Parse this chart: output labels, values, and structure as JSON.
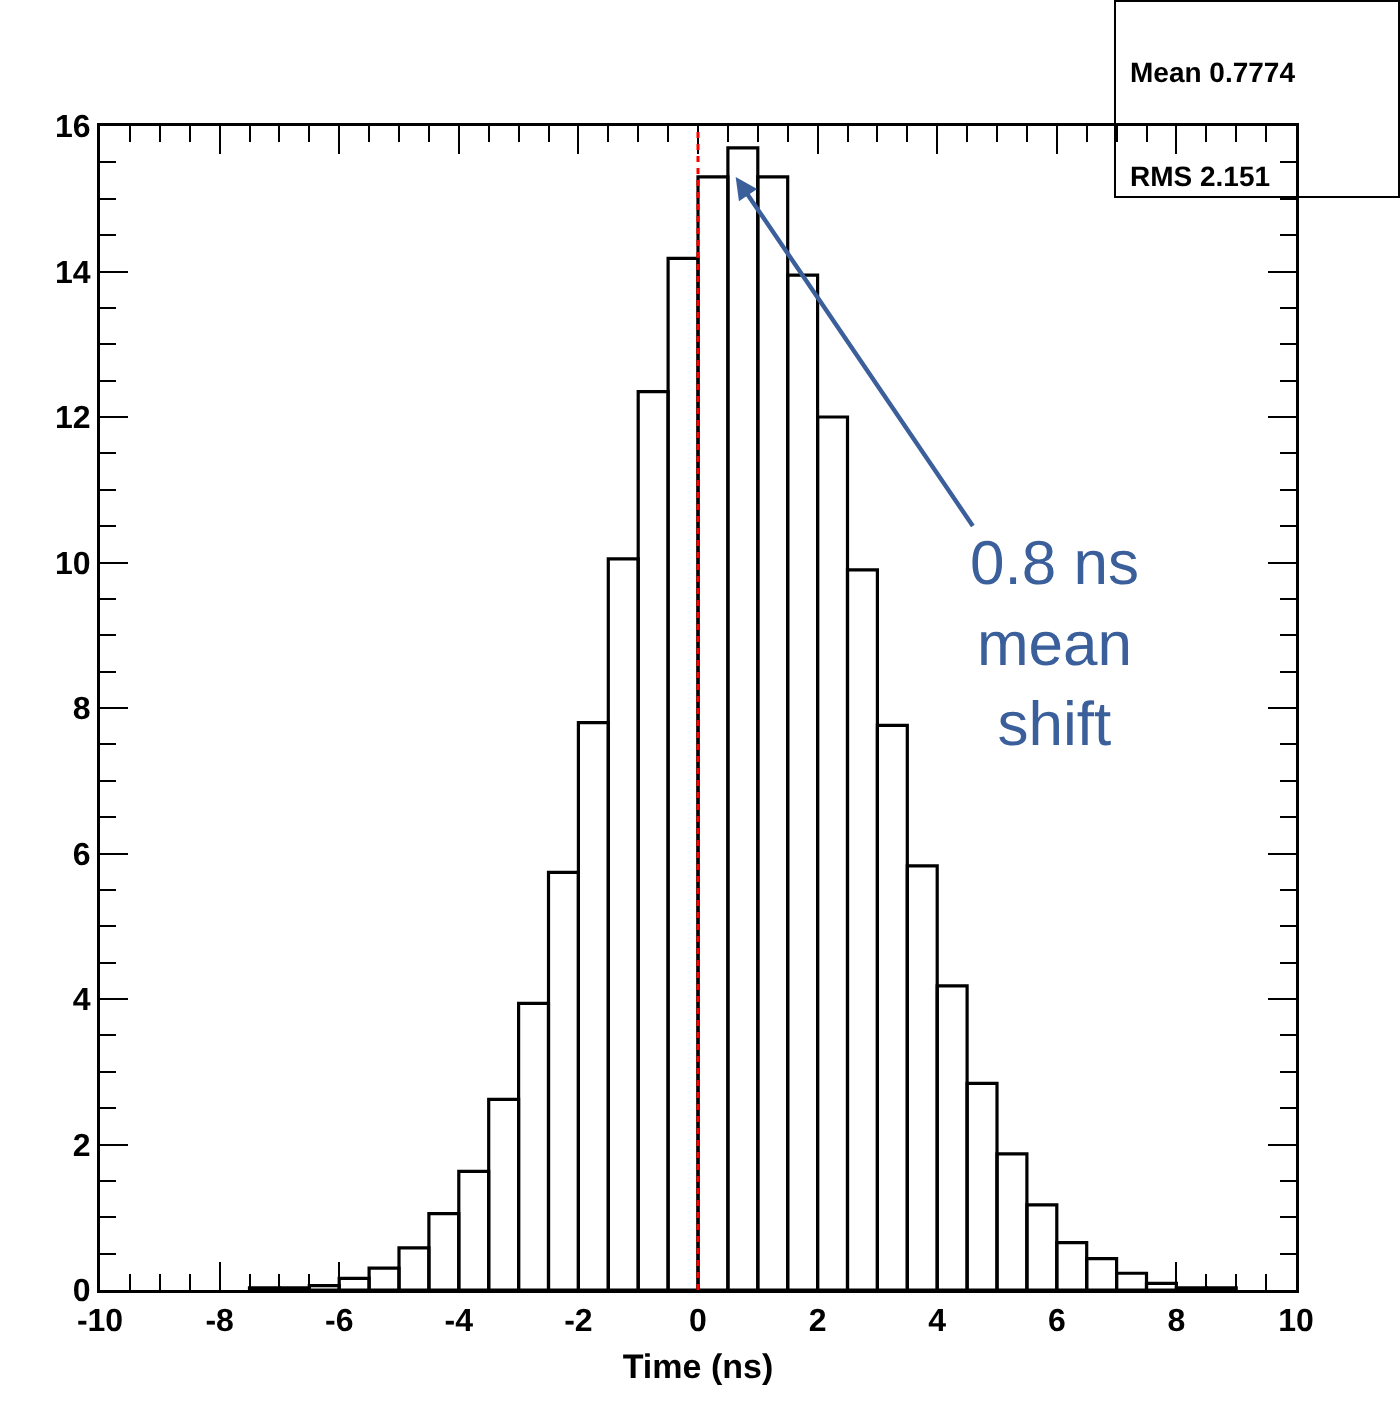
{
  "chart_data": {
    "type": "histogram",
    "xlabel": "Time (ns)",
    "bins": [
      -7.5,
      -7,
      -6.5,
      -6,
      -5.5,
      -5,
      -4.5,
      -4,
      -3.5,
      -3,
      -2.5,
      -2,
      -1.5,
      -1,
      -0.5,
      0,
      0.5,
      1,
      1.5,
      2,
      2.5,
      3,
      3.5,
      4,
      4.5,
      5,
      5.5,
      6,
      6.5,
      7,
      7.5,
      8,
      8.5,
      9
    ],
    "values": [
      0.03,
      0.03,
      0.06,
      0.16,
      0.3,
      0.58,
      1.05,
      1.63,
      2.62,
      3.94,
      5.74,
      7.8,
      10.05,
      12.35,
      14.18,
      15.3,
      15.7,
      15.3,
      13.95,
      12.0,
      9.9,
      7.76,
      5.83,
      4.18,
      2.84,
      1.87,
      1.17,
      0.65,
      0.43,
      0.23,
      0.09,
      0.03,
      0.03
    ],
    "color": "#000000",
    "xlim": [
      -10,
      10
    ],
    "xticks": [
      -10,
      -8,
      -6,
      -4,
      -2,
      0,
      2,
      4,
      6,
      8,
      10
    ],
    "ylim": [
      0,
      16
    ],
    "yticks": [
      0,
      2,
      4,
      6,
      8,
      10,
      12,
      14,
      16
    ],
    "grid": false,
    "legend": false,
    "ref_lines": [
      {
        "axis": "x",
        "value": 0,
        "color": "#ff0000",
        "line_style": "dotted"
      }
    ],
    "annotations": [
      {
        "text": "0.8 ns\nmean\nshift",
        "x": 0.63,
        "y": 15.3
      },
      "Mean 0.7774",
      "RMS 2.151"
    ]
  }
}
